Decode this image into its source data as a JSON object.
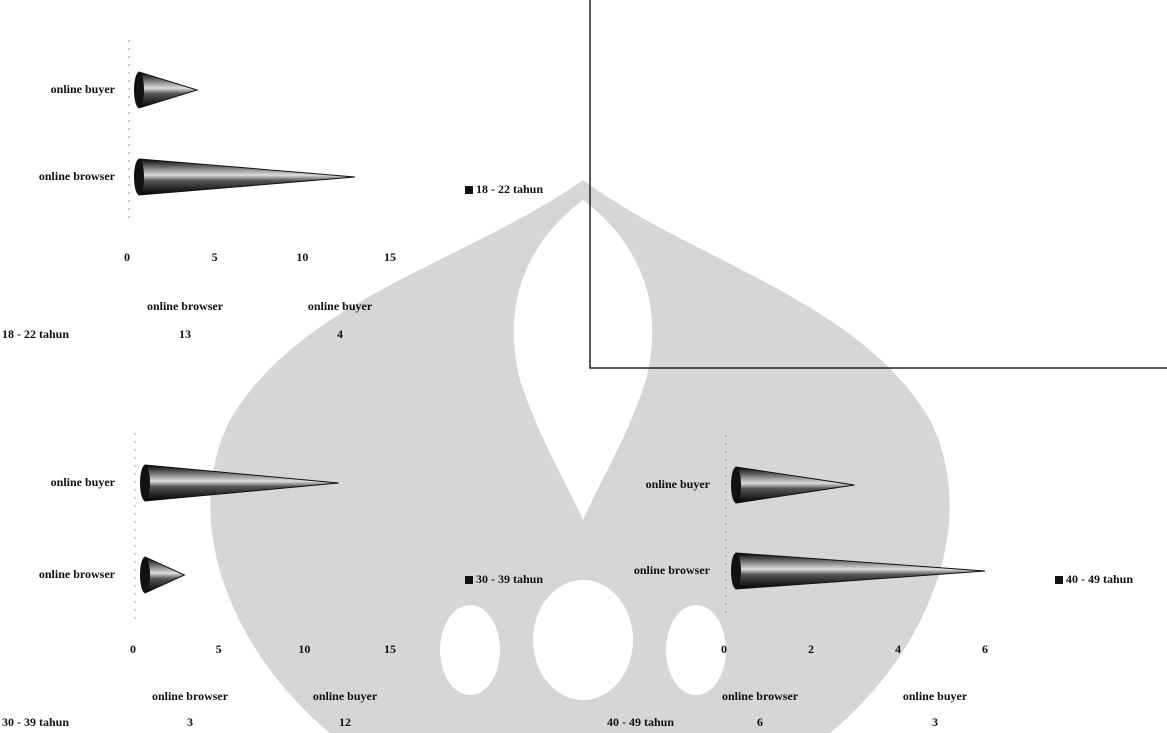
{
  "chart_data": [
    {
      "type": "cone-bar",
      "categories": [
        "online browser",
        "online buyer"
      ],
      "series": [
        {
          "name": "18 - 22 tahun",
          "color": "#111111",
          "values": [
            13,
            4
          ]
        }
      ],
      "xlim": [
        0,
        15
      ],
      "xticks": [
        0,
        5,
        10,
        15
      ]
    },
    {
      "type": "cone-bar",
      "categories": [
        "online browser",
        "online buyer"
      ],
      "series": [
        {
          "name": "30 - 39 tahun",
          "color": "#111111",
          "values": [
            3,
            12
          ]
        }
      ],
      "xlim": [
        0,
        15
      ],
      "xticks": [
        0,
        5,
        10,
        15
      ]
    },
    {
      "type": "cone-bar",
      "categories": [
        "online browser",
        "online buyer"
      ],
      "series": [
        {
          "name": "40 - 49 tahun",
          "color": "#111111",
          "values": [
            6,
            3
          ]
        }
      ],
      "xlim": [
        0,
        6
      ],
      "xticks": [
        0,
        2,
        4,
        6
      ]
    }
  ]
}
